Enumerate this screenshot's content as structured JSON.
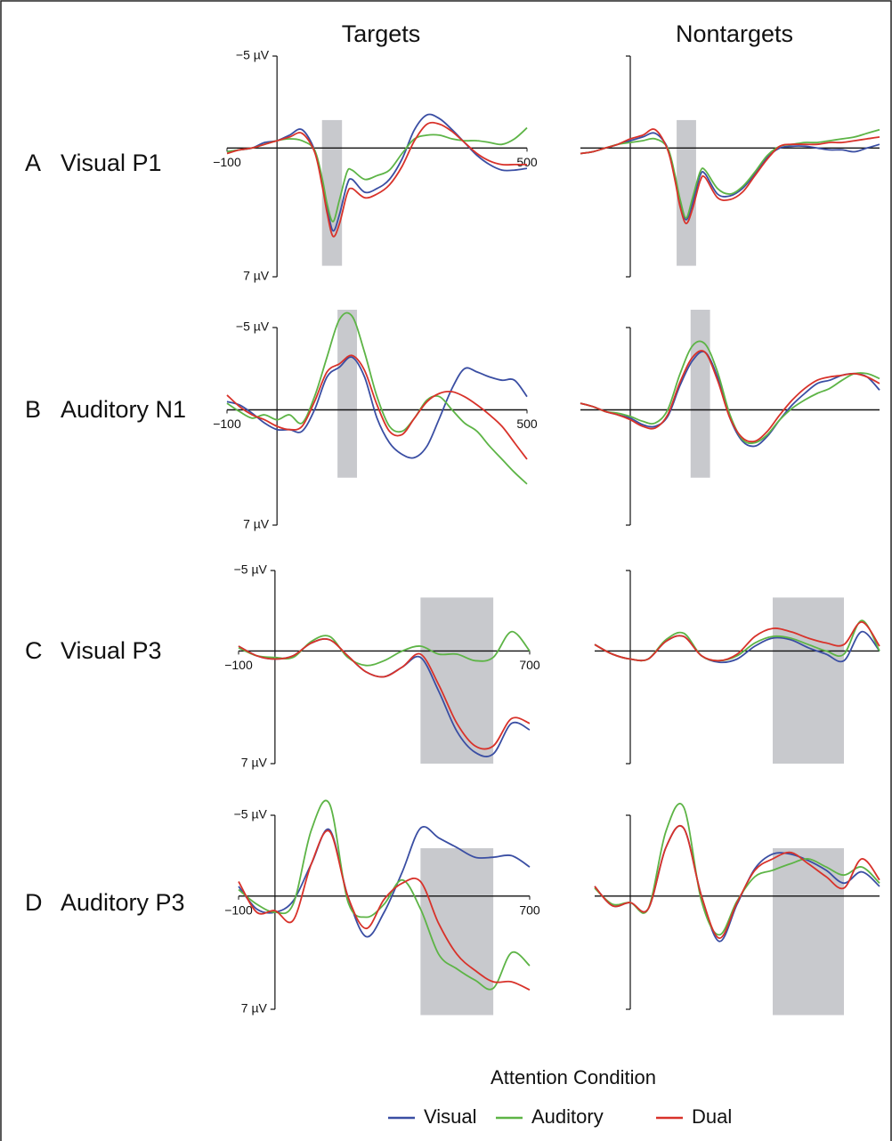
{
  "columns": [
    "Targets",
    "Nontargets"
  ],
  "rows": [
    {
      "letter": "A",
      "name": "Visual P1"
    },
    {
      "letter": "B",
      "name": "Auditory N1"
    },
    {
      "letter": "C",
      "name": "Visual P3"
    },
    {
      "letter": "D",
      "name": "Auditory P3"
    }
  ],
  "legend": {
    "title": "Attention Condition",
    "items": [
      {
        "name": "Visual",
        "color": "#3a4ea3"
      },
      {
        "name": "Auditory",
        "color": "#5db446"
      },
      {
        "name": "Dual",
        "color": "#d8322a"
      }
    ]
  },
  "chart_data": [
    {
      "type": "line",
      "invert_y": true,
      "xlim": [
        -100,
        500
      ],
      "ylim": [
        -5,
        7
      ],
      "xticks": [
        {
          "value": -100,
          "label": "−100"
        },
        500
      ],
      "yticks": [
        {
          "value": -5,
          "label": "−5 µV"
        },
        {
          "value": 7,
          "label": "7 µV"
        }
      ],
      "window": [
        90,
        130
      ],
      "x": [
        -100,
        -75,
        -50,
        -25,
        0,
        25,
        50,
        75,
        90,
        100,
        112,
        125,
        140,
        150,
        175,
        200,
        225,
        250,
        275,
        300,
        325,
        350,
        375,
        400,
        425,
        450,
        475,
        500
      ],
      "series": [
        {
          "values": [
            0.2,
            0.1,
            0,
            -0.3,
            -0.4,
            -0.7,
            -1.0,
            0.1,
            1.8,
            3.2,
            4.5,
            3.6,
            2.0,
            1.7,
            2.4,
            2.2,
            1.7,
            0.6,
            -1.0,
            -1.8,
            -1.6,
            -1.0,
            -0.3,
            0.4,
            0.9,
            1.2,
            1.2,
            1.1
          ]
        },
        {
          "values": [
            0.2,
            0.1,
            0,
            -0.2,
            -0.4,
            -0.5,
            -0.4,
            0.1,
            1.6,
            3.0,
            4.0,
            2.8,
            1.3,
            1.2,
            1.7,
            1.5,
            1.2,
            0.3,
            -0.5,
            -0.7,
            -0.7,
            -0.5,
            -0.4,
            -0.4,
            -0.3,
            -0.2,
            -0.5,
            -1.1
          ]
        },
        {
          "values": [
            0.3,
            0.1,
            0,
            -0.2,
            -0.4,
            -0.6,
            -0.8,
            0.2,
            2.0,
            3.5,
            4.8,
            4.1,
            2.5,
            2.2,
            2.7,
            2.5,
            2.0,
            1.0,
            -0.4,
            -1.3,
            -1.3,
            -0.9,
            -0.3,
            0.3,
            0.7,
            0.9,
            0.9,
            0.9
          ]
        }
      ]
    },
    {
      "type": "line",
      "invert_y": true,
      "xlim": [
        -100,
        500
      ],
      "ylim": [
        -5,
        7
      ],
      "window": [
        93,
        132
      ],
      "x": [
        -100,
        -75,
        -50,
        -25,
        0,
        25,
        50,
        75,
        90,
        100,
        112,
        125,
        140,
        150,
        175,
        200,
        225,
        250,
        275,
        300,
        325,
        350,
        375,
        400,
        425,
        450,
        475,
        500
      ],
      "series": [
        {
          "values": [
            0.3,
            0.2,
            0,
            -0.2,
            -0.4,
            -0.6,
            -0.8,
            0.0,
            1.6,
            3.0,
            3.9,
            3.0,
            1.5,
            1.4,
            2.5,
            2.6,
            2.2,
            1.4,
            0.5,
            0.0,
            -0.1,
            -0.1,
            0.0,
            0.1,
            0.1,
            0.2,
            0.0,
            -0.2
          ]
        },
        {
          "values": [
            0.3,
            0.2,
            0,
            -0.2,
            -0.3,
            -0.4,
            -0.5,
            0.0,
            1.5,
            2.8,
            3.8,
            2.7,
            1.3,
            1.2,
            2.2,
            2.5,
            2.1,
            1.3,
            0.4,
            -0.1,
            -0.2,
            -0.3,
            -0.3,
            -0.4,
            -0.5,
            -0.6,
            -0.8,
            -1.0
          ]
        },
        {
          "values": [
            0.3,
            0.2,
            0,
            -0.2,
            -0.5,
            -0.7,
            -1.0,
            0.1,
            1.8,
            3.2,
            4.1,
            3.3,
            1.8,
            1.6,
            2.7,
            2.8,
            2.4,
            1.5,
            0.6,
            -0.1,
            -0.2,
            -0.2,
            -0.2,
            -0.3,
            -0.3,
            -0.4,
            -0.5,
            -0.6
          ]
        }
      ]
    },
    {
      "type": "line",
      "invert_y": true,
      "xlim": [
        -100,
        500
      ],
      "ylim": [
        -5,
        7
      ],
      "xticks": [
        {
          "value": -100,
          "label": "−100"
        },
        500
      ],
      "yticks": [
        {
          "value": -5,
          "label": "−5 µV"
        },
        {
          "value": 7,
          "label": "7 µV"
        }
      ],
      "window": [
        121,
        160
      ],
      "x": [
        -100,
        -75,
        -50,
        -25,
        0,
        25,
        50,
        75,
        100,
        125,
        150,
        175,
        200,
        225,
        250,
        275,
        300,
        325,
        350,
        375,
        400,
        425,
        450,
        475,
        500
      ],
      "series": [
        {
          "values": [
            -0.5,
            -0.3,
            0.2,
            0.8,
            1.2,
            1.2,
            1.3,
            0.0,
            -2.0,
            -2.6,
            -3.2,
            -2.0,
            0.5,
            2.0,
            2.7,
            2.9,
            2.2,
            0.5,
            -1.3,
            -2.5,
            -2.3,
            -2.0,
            -1.8,
            -1.8,
            -0.8
          ]
        },
        {
          "values": [
            -0.4,
            0.1,
            0.5,
            0.3,
            0.6,
            0.3,
            0.8,
            -0.8,
            -3.2,
            -5.5,
            -5.7,
            -3.5,
            -0.8,
            1.0,
            1.3,
            0.5,
            -0.6,
            -0.8,
            0.0,
            0.8,
            1.3,
            2.2,
            3.0,
            3.8,
            4.5
          ]
        },
        {
          "values": [
            -0.9,
            -0.2,
            0.3,
            0.6,
            1.0,
            1.2,
            1.0,
            -0.5,
            -2.3,
            -2.8,
            -3.3,
            -2.4,
            -0.3,
            1.3,
            1.5,
            0.5,
            -0.5,
            -1.0,
            -1.1,
            -0.8,
            -0.3,
            0.3,
            1.0,
            2.0,
            3.0
          ]
        }
      ]
    },
    {
      "type": "line",
      "invert_y": true,
      "xlim": [
        -100,
        500
      ],
      "ylim": [
        -5,
        7
      ],
      "window": [
        121,
        160
      ],
      "x": [
        -100,
        -75,
        -50,
        -25,
        0,
        25,
        50,
        75,
        100,
        125,
        150,
        175,
        200,
        225,
        250,
        275,
        300,
        325,
        350,
        375,
        400,
        425,
        450,
        475,
        500
      ],
      "series": [
        {
          "values": [
            -0.4,
            -0.2,
            0.1,
            0.3,
            0.5,
            0.9,
            1.0,
            0.4,
            -1.5,
            -3.0,
            -3.5,
            -2.0,
            0.5,
            1.9,
            2.2,
            1.6,
            0.6,
            -0.3,
            -1.0,
            -1.6,
            -1.8,
            -2.1,
            -2.2,
            -2.0,
            -1.2
          ]
        },
        {
          "values": [
            -0.4,
            -0.2,
            0.1,
            0.2,
            0.4,
            0.7,
            0.8,
            0.0,
            -2.2,
            -3.9,
            -4.0,
            -2.3,
            0.3,
            1.8,
            2.0,
            1.5,
            0.6,
            -0.1,
            -0.6,
            -1.0,
            -1.3,
            -1.8,
            -2.2,
            -2.2,
            -1.9
          ]
        },
        {
          "values": [
            -0.4,
            -0.2,
            0.1,
            0.3,
            0.6,
            1.0,
            1.1,
            0.3,
            -1.7,
            -3.2,
            -3.5,
            -1.8,
            0.5,
            1.7,
            1.9,
            1.3,
            0.3,
            -0.6,
            -1.3,
            -1.8,
            -2.0,
            -2.1,
            -2.2,
            -2.0,
            -1.6
          ]
        }
      ]
    },
    {
      "type": "line",
      "invert_y": true,
      "xlim": [
        -100,
        700
      ],
      "ylim": [
        -5,
        7
      ],
      "xticks": [
        {
          "value": -100,
          "label": "−100"
        },
        700
      ],
      "yticks": [
        {
          "value": -5,
          "label": "−5 µV"
        },
        {
          "value": 7,
          "label": "7 µV"
        }
      ],
      "window": [
        400,
        600
      ],
      "x": [
        -100,
        -50,
        0,
        50,
        100,
        150,
        200,
        250,
        300,
        350,
        400,
        450,
        500,
        550,
        600,
        650,
        700
      ],
      "series": [
        {
          "values": [
            -0.3,
            0.3,
            0.5,
            0.3,
            -0.5,
            -0.7,
            0.3,
            1.3,
            1.6,
            1.0,
            0.4,
            2.5,
            5.0,
            6.3,
            6.4,
            4.5,
            4.9
          ]
        },
        {
          "values": [
            -0.2,
            0.3,
            0.4,
            0.4,
            -0.6,
            -0.9,
            0.4,
            0.9,
            0.6,
            0.0,
            -0.3,
            0.2,
            0.2,
            0.6,
            0.4,
            -1.2,
            0.0
          ]
        },
        {
          "values": [
            -0.3,
            0.3,
            0.5,
            0.3,
            -0.5,
            -0.7,
            0.3,
            1.3,
            1.6,
            1.0,
            0.2,
            2.1,
            4.5,
            5.9,
            5.9,
            4.2,
            4.5
          ]
        }
      ]
    },
    {
      "type": "line",
      "invert_y": true,
      "xlim": [
        -100,
        700
      ],
      "ylim": [
        -5,
        7
      ],
      "window": [
        400,
        600
      ],
      "x": [
        -100,
        -50,
        0,
        50,
        100,
        150,
        200,
        250,
        300,
        350,
        400,
        450,
        500,
        550,
        600,
        650,
        700
      ],
      "series": [
        {
          "values": [
            -0.4,
            0.2,
            0.5,
            0.5,
            -0.6,
            -0.9,
            0.3,
            0.7,
            0.5,
            -0.3,
            -0.8,
            -0.7,
            -0.2,
            0.2,
            0.6,
            -1.2,
            0.0
          ]
        },
        {
          "values": [
            -0.4,
            0.2,
            0.5,
            0.5,
            -0.7,
            -1.1,
            0.3,
            0.6,
            0.3,
            -0.5,
            -0.9,
            -0.8,
            -0.4,
            0.0,
            0.2,
            -1.9,
            0.0
          ]
        },
        {
          "values": [
            -0.4,
            0.2,
            0.5,
            0.5,
            -0.6,
            -0.9,
            0.3,
            0.6,
            0.2,
            -0.9,
            -1.4,
            -1.2,
            -0.8,
            -0.5,
            -0.4,
            -1.8,
            -0.3
          ]
        }
      ]
    },
    {
      "type": "line",
      "invert_y": true,
      "xlim": [
        -100,
        700
      ],
      "ylim": [
        -5,
        7
      ],
      "xticks": [
        {
          "value": -100,
          "label": "−100"
        },
        700
      ],
      "yticks": [
        {
          "value": -5,
          "label": "−5 µV"
        },
        {
          "value": 7,
          "label": "7 µV"
        }
      ],
      "window": [
        400,
        600
      ],
      "x": [
        -100,
        -50,
        0,
        50,
        100,
        150,
        200,
        250,
        300,
        350,
        400,
        450,
        500,
        550,
        600,
        650,
        700
      ],
      "series": [
        {
          "values": [
            -0.6,
            0.8,
            1.0,
            0.3,
            -2.0,
            -4.1,
            0.0,
            2.5,
            1.0,
            -1.5,
            -4.2,
            -3.6,
            -3.0,
            -2.4,
            -2.4,
            -2.5,
            -1.8
          ]
        },
        {
          "values": [
            -0.4,
            0.5,
            1.0,
            0.5,
            -4.1,
            -5.7,
            0.3,
            1.3,
            0.5,
            -1.0,
            0.8,
            3.6,
            4.5,
            5.2,
            5.7,
            3.5,
            4.3
          ]
        },
        {
          "values": [
            -0.9,
            1.0,
            0.9,
            1.5,
            -2.0,
            -4.0,
            0.0,
            2.0,
            0.2,
            -0.8,
            -0.9,
            1.7,
            3.6,
            4.6,
            5.3,
            5.3,
            5.8
          ]
        }
      ]
    },
    {
      "type": "line",
      "invert_y": true,
      "xlim": [
        -100,
        700
      ],
      "ylim": [
        -5,
        7
      ],
      "window": [
        400,
        600
      ],
      "x": [
        -100,
        -50,
        0,
        50,
        100,
        150,
        200,
        250,
        300,
        350,
        400,
        450,
        500,
        550,
        600,
        650,
        700
      ],
      "series": [
        {
          "values": [
            -0.6,
            0.6,
            0.4,
            0.8,
            -3.0,
            -4.2,
            0.0,
            2.8,
            0.5,
            -1.7,
            -2.6,
            -2.6,
            -2.2,
            -1.6,
            -0.8,
            -1.5,
            -0.6
          ]
        },
        {
          "values": [
            -0.5,
            0.5,
            0.4,
            0.8,
            -4.0,
            -5.5,
            0.3,
            2.4,
            0.3,
            -1.2,
            -1.6,
            -2.0,
            -2.3,
            -1.8,
            -1.3,
            -1.8,
            -0.8
          ]
        },
        {
          "values": [
            -0.6,
            0.6,
            0.4,
            0.8,
            -3.0,
            -4.2,
            0.0,
            2.6,
            0.4,
            -1.6,
            -2.3,
            -2.7,
            -2.0,
            -1.2,
            -0.5,
            -2.3,
            -1.0
          ]
        }
      ]
    }
  ]
}
